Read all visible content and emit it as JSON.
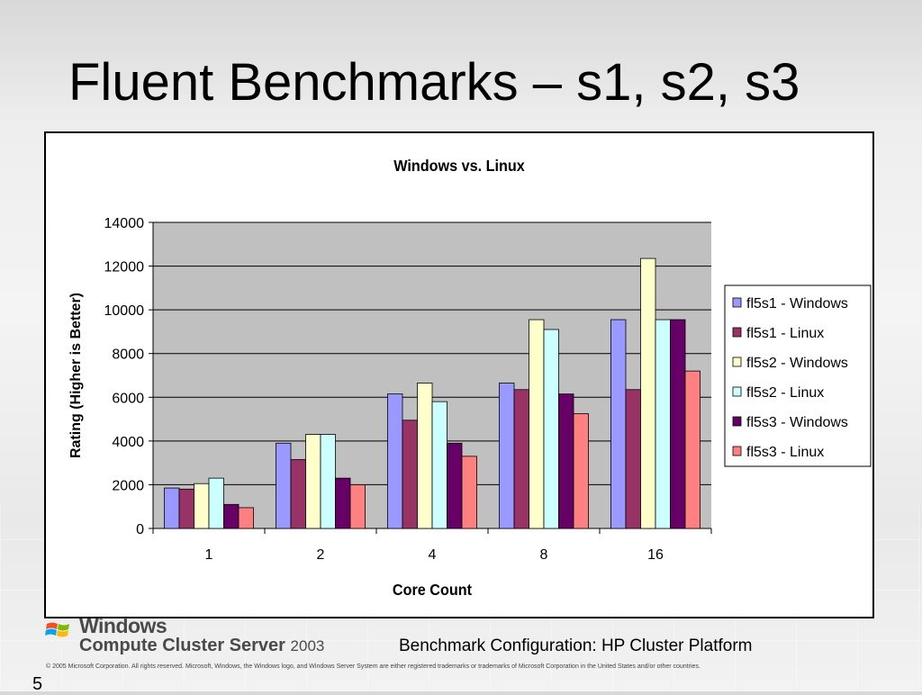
{
  "slide": {
    "title": "Fluent Benchmarks – s1, s2, s3",
    "footer": {
      "brand_word": "Windows",
      "brand_product": "Compute Cluster Server",
      "brand_year": "2003",
      "config": "Benchmark Configuration:  HP Cluster Platform",
      "copyright": "© 2005 Microsoft Corporation. All rights reserved. Microsoft, Windows, the Windows logo, and Windows Server System are either registered trademarks or trademarks of Microsoft Corporation in the United States and/or other countries.",
      "page_number": "5"
    }
  },
  "chart_data": {
    "type": "bar",
    "title": "Windows vs. Linux",
    "xlabel": "Core Count",
    "ylabel": "Rating (Higher is Better)",
    "categories": [
      "1",
      "2",
      "4",
      "8",
      "16"
    ],
    "ylim": [
      0,
      14000
    ],
    "yticks": [
      0,
      2000,
      4000,
      6000,
      8000,
      10000,
      12000,
      14000
    ],
    "grid": true,
    "legend_position": "right",
    "plot_background": "#c0c0c0",
    "series": [
      {
        "name": "fl5s1 - Windows",
        "color": "#9999ff",
        "values": [
          1850,
          3900,
          6150,
          6650,
          9550
        ]
      },
      {
        "name": "fl5s1 - Linux",
        "color": "#993366",
        "values": [
          1800,
          3150,
          4950,
          6350,
          6350
        ]
      },
      {
        "name": "fl5s2 - Windows",
        "color": "#ffffcc",
        "values": [
          2050,
          4300,
          6650,
          9550,
          12350
        ]
      },
      {
        "name": "fl5s2 - Linux",
        "color": "#ccffff",
        "values": [
          2300,
          4300,
          5800,
          9100,
          9550
        ]
      },
      {
        "name": "fl5s3 - Windows",
        "color": "#660066",
        "values": [
          1100,
          2300,
          3900,
          6150,
          9550
        ]
      },
      {
        "name": "fl5s3 - Linux",
        "color": "#ff8080",
        "values": [
          950,
          2000,
          3300,
          5250,
          7200
        ]
      }
    ]
  }
}
